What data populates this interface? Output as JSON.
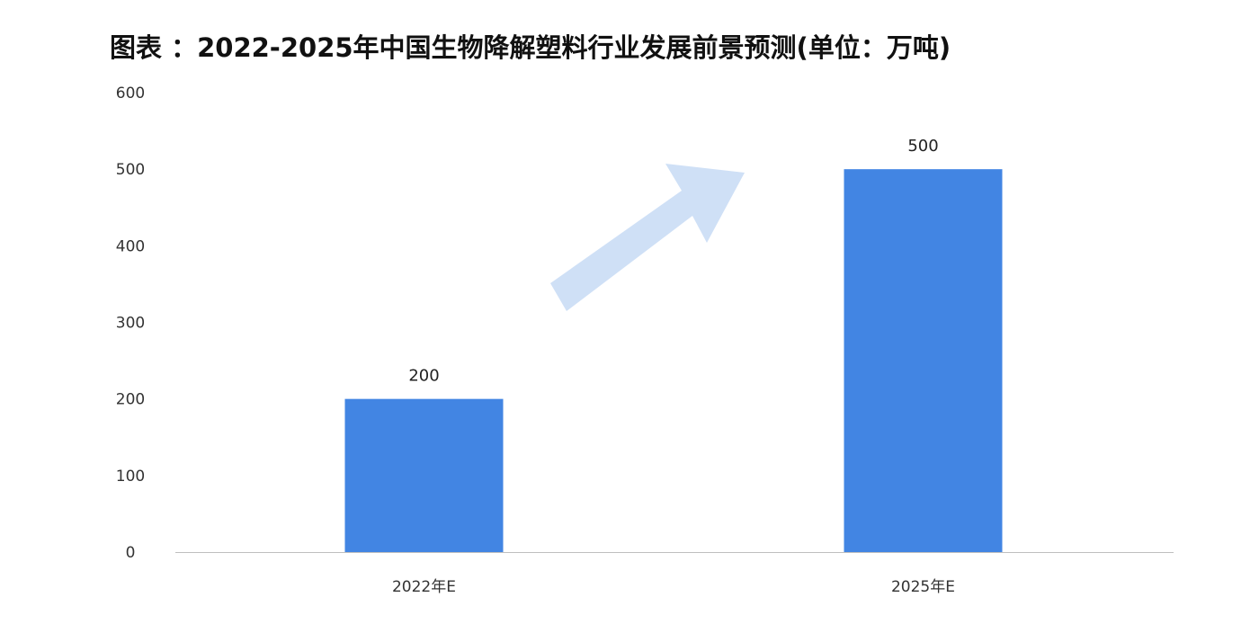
{
  "chart_data": {
    "type": "bar",
    "title": "图表 ：2022-2025年中国生物降解塑料行业发展前景预测(单位：万吨)",
    "categories": [
      "2022年E",
      "2025年E"
    ],
    "values": [
      200,
      500
    ],
    "data_labels": [
      "200",
      "500"
    ],
    "ylim": [
      0,
      600
    ],
    "yticks": [
      0,
      100,
      200,
      300,
      400,
      500,
      600
    ],
    "xlabel": "",
    "ylabel": "",
    "grid": false,
    "bar_color": "#4285e3",
    "arrow_color": "#cfe0f6",
    "axis_color": "#bfbfbf"
  }
}
